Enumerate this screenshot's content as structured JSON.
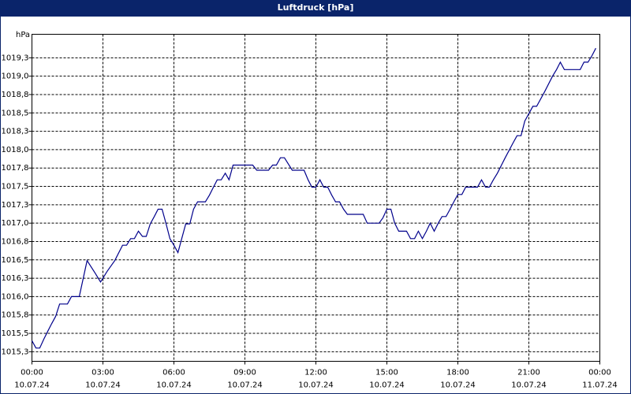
{
  "chart_data": {
    "type": "line",
    "title": "Luftdruck [hPa]",
    "y_label": "hPa",
    "x": [
      0,
      0.17,
      0.33,
      0.5,
      0.67,
      0.83,
      1,
      1.17,
      1.5,
      1.67,
      2,
      2.33,
      2.67,
      2.9,
      3.17,
      3.5,
      3.83,
      4,
      4.17,
      4.33,
      4.5,
      4.67,
      4.83,
      5,
      5.17,
      5.33,
      5.5,
      5.67,
      5.83,
      6,
      6.17,
      6.33,
      6.5,
      6.67,
      6.83,
      7,
      7.33,
      7.5,
      7.67,
      7.83,
      8,
      8.17,
      8.33,
      8.5,
      8.67,
      9.33,
      9.5,
      10,
      10.17,
      10.33,
      10.5,
      10.67,
      11,
      11.5,
      11.67,
      11.83,
      12,
      12.17,
      12.33,
      12.5,
      12.67,
      12.83,
      13,
      13.17,
      13.33,
      14,
      14.17,
      14.67,
      14.83,
      15,
      15.17,
      15.33,
      15.5,
      15.83,
      16,
      16.17,
      16.33,
      16.5,
      16.67,
      16.83,
      17,
      17.17,
      17.33,
      17.5,
      17.67,
      17.83,
      18,
      18.17,
      18.33,
      18.67,
      18.83,
      19,
      19.17,
      19.33,
      19.5,
      19.67,
      20,
      20.33,
      20.5,
      20.67,
      20.83,
      21,
      21.17,
      21.33,
      21.67,
      22,
      22.17,
      22.33,
      22.5,
      22.67,
      23.17,
      23.33,
      23.5,
      23.67,
      23.83
    ],
    "series": [
      {
        "name": "Luftdruck",
        "color": "#00008b",
        "values": [
          1015.4,
          1015.3,
          1015.3,
          1015.42,
          1015.53,
          1015.63,
          1015.73,
          1015.9,
          1015.9,
          1016.0,
          1016.0,
          1016.49,
          1016.32,
          1016.2,
          1016.34,
          1016.49,
          1016.7,
          1016.7,
          1016.79,
          1016.79,
          1016.89,
          1016.82,
          1016.82,
          1016.99,
          1017.09,
          1017.19,
          1017.19,
          1016.99,
          1016.79,
          1016.7,
          1016.6,
          1016.79,
          1016.99,
          1016.99,
          1017.19,
          1017.29,
          1017.29,
          1017.38,
          1017.49,
          1017.59,
          1017.59,
          1017.68,
          1017.59,
          1017.79,
          1017.79,
          1017.79,
          1017.72,
          1017.72,
          1017.79,
          1017.79,
          1017.89,
          1017.89,
          1017.72,
          1017.72,
          1017.59,
          1017.49,
          1017.49,
          1017.59,
          1017.49,
          1017.49,
          1017.38,
          1017.29,
          1017.29,
          1017.19,
          1017.12,
          1017.12,
          1017.0,
          1017.0,
          1017.07,
          1017.19,
          1017.19,
          1017.0,
          1016.89,
          1016.89,
          1016.79,
          1016.79,
          1016.89,
          1016.79,
          1016.89,
          1017.0,
          1016.89,
          1017.0,
          1017.09,
          1017.09,
          1017.19,
          1017.29,
          1017.39,
          1017.39,
          1017.49,
          1017.49,
          1017.49,
          1017.59,
          1017.49,
          1017.49,
          1017.59,
          1017.68,
          1017.89,
          1018.09,
          1018.19,
          1018.19,
          1018.39,
          1018.49,
          1018.59,
          1018.59,
          1018.79,
          1019.0,
          1019.09,
          1019.19,
          1019.09,
          1019.09,
          1019.09,
          1019.19,
          1019.19,
          1019.28,
          1019.38
        ]
      }
    ],
    "xlim": [
      0,
      24
    ],
    "xticks": [
      {
        "value": 0,
        "label": "00:00",
        "date": "10.07.24"
      },
      {
        "value": 3,
        "label": "03:00",
        "date": "10.07.24"
      },
      {
        "value": 6,
        "label": "06:00",
        "date": "10.07.24"
      },
      {
        "value": 9,
        "label": "09:00",
        "date": "10.07.24"
      },
      {
        "value": 12,
        "label": "12:00",
        "date": "10.07.24"
      },
      {
        "value": 15,
        "label": "15:00",
        "date": "10.07.24"
      },
      {
        "value": 18,
        "label": "18:00",
        "date": "10.07.24"
      },
      {
        "value": 21,
        "label": "21:00",
        "date": "10.07.24"
      },
      {
        "value": 24,
        "label": "00:00",
        "date": "11.07.24"
      }
    ],
    "ylim": [
      1015.12,
      1019.57
    ],
    "yticks": [
      {
        "value": 1015.25,
        "label": "1015,3"
      },
      {
        "value": 1015.5,
        "label": "1015,5"
      },
      {
        "value": 1015.75,
        "label": "1015,8"
      },
      {
        "value": 1016.0,
        "label": "1016,0"
      },
      {
        "value": 1016.25,
        "label": "1016,3"
      },
      {
        "value": 1016.5,
        "label": "1016,5"
      },
      {
        "value": 1016.75,
        "label": "1016,8"
      },
      {
        "value": 1017.0,
        "label": "1017,0"
      },
      {
        "value": 1017.25,
        "label": "1017,3"
      },
      {
        "value": 1017.5,
        "label": "1017,5"
      },
      {
        "value": 1017.75,
        "label": "1017,8"
      },
      {
        "value": 1018.0,
        "label": "1018,0"
      },
      {
        "value": 1018.25,
        "label": "1018,3"
      },
      {
        "value": 1018.5,
        "label": "1018,5"
      },
      {
        "value": 1018.75,
        "label": "1018,8"
      },
      {
        "value": 1019.0,
        "label": "1019,0"
      },
      {
        "value": 1019.25,
        "label": "1019,3"
      }
    ],
    "grid": true
  }
}
